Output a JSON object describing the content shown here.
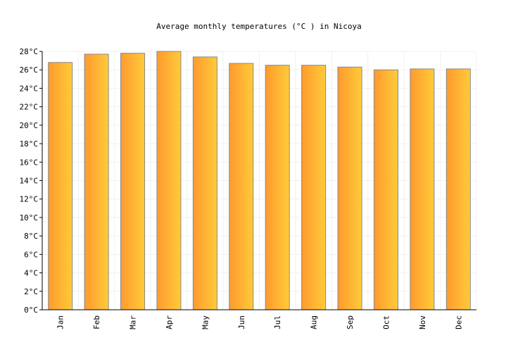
{
  "chart_data": {
    "type": "bar",
    "title": "Average monthly temperatures (°C ) in Nicoya",
    "xlabel": "",
    "ylabel": "",
    "categories": [
      "Jan",
      "Feb",
      "Mar",
      "Apr",
      "May",
      "Jun",
      "Jul",
      "Aug",
      "Sep",
      "Oct",
      "Nov",
      "Dec"
    ],
    "values": [
      26.8,
      27.7,
      27.8,
      28.0,
      27.4,
      26.7,
      26.5,
      26.5,
      26.3,
      26.0,
      26.1,
      26.1
    ],
    "ylim": [
      0,
      28
    ],
    "y_ticks": [
      0,
      2,
      4,
      6,
      8,
      10,
      12,
      14,
      16,
      18,
      20,
      22,
      24,
      26,
      28
    ],
    "y_tick_suffix": "°C",
    "grid": true,
    "legend": "none",
    "colors": {
      "bar_start": "#ff9a2e",
      "bar_end": "#ffcb3a",
      "bar_stroke": "#888888",
      "grid": "#f0f0f0",
      "axis": "#000000",
      "text": "#000000"
    }
  }
}
